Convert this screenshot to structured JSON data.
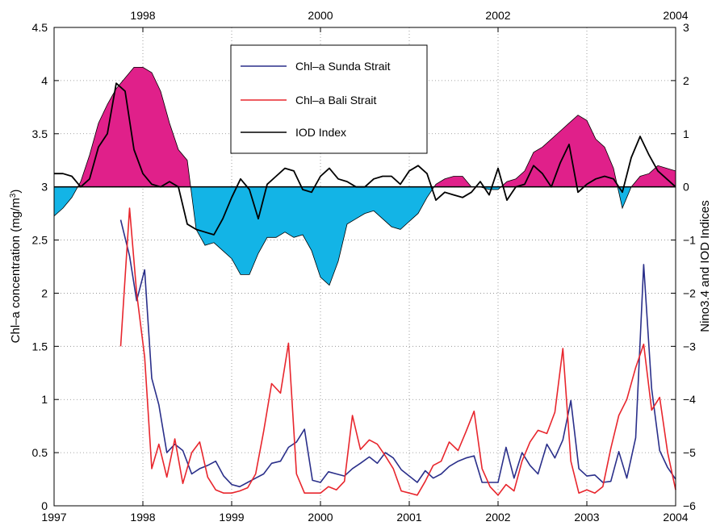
{
  "chart_data": {
    "type": "line",
    "bottom_axis": {
      "ticks": [
        "1997",
        "1998",
        "1999",
        "2000",
        "2001",
        "2002",
        "2003",
        "2004"
      ],
      "range": [
        1997,
        2004
      ]
    },
    "top_axis": {
      "ticks": [
        "1998",
        "2000",
        "2002",
        "2004"
      ],
      "values": [
        1998,
        2000,
        2002,
        2004
      ]
    },
    "left_axis": {
      "label_prefix": "Chl–a concentration (mg/m",
      "label_sup": "3",
      "label_suffix": ")",
      "ticks": [
        "0",
        "0.5",
        "1",
        "1.5",
        "2",
        "2.5",
        "3",
        "3.5",
        "4",
        "4.5"
      ],
      "range": [
        0,
        4.5
      ]
    },
    "right_axis": {
      "label": "Nino3.4 and IOD Indices",
      "ticks": [
        "−6",
        "−5",
        "−4",
        "−3",
        "−2",
        "−1",
        "0",
        "1",
        "2",
        "3"
      ],
      "range": [
        -6,
        3
      ]
    },
    "grid": true,
    "legend": {
      "placement": "top-center",
      "entries": [
        {
          "label": "Chl–a Sunda Strait",
          "color": "#2a2f8a"
        },
        {
          "label": "Chl–a Bali Strait",
          "color": "#e8262d"
        },
        {
          "label": "IOD Index",
          "color": "#000000"
        }
      ]
    },
    "nino_fill": {
      "positive_color": "#e0208a",
      "negative_color": "#13b4e6",
      "x": [
        1997.0,
        1997.1,
        1997.2,
        1997.3,
        1997.4,
        1997.5,
        1997.6,
        1997.7,
        1997.8,
        1997.9,
        1998.0,
        1998.1,
        1998.2,
        1998.3,
        1998.4,
        1998.5,
        1998.6,
        1998.7,
        1998.8,
        1998.9,
        1999.0,
        1999.1,
        1999.2,
        1999.3,
        1999.4,
        1999.5,
        1999.6,
        1999.7,
        1999.8,
        1999.9,
        2000.0,
        2000.1,
        2000.2,
        2000.3,
        2000.4,
        2000.5,
        2000.6,
        2000.7,
        2000.8,
        2000.9,
        2001.0,
        2001.1,
        2001.2,
        2001.3,
        2001.4,
        2001.5,
        2001.6,
        2001.7,
        2001.8,
        2001.9,
        2002.0,
        2002.1,
        2002.2,
        2002.3,
        2002.4,
        2002.5,
        2002.6,
        2002.7,
        2002.8,
        2002.9,
        2003.0,
        2003.1,
        2003.2,
        2003.3,
        2003.4,
        2003.5,
        2003.6,
        2003.7,
        2003.8,
        2003.9,
        2004.0
      ],
      "y": [
        -0.55,
        -0.4,
        -0.2,
        0.1,
        0.6,
        1.2,
        1.55,
        1.85,
        2.05,
        2.25,
        2.25,
        2.15,
        1.8,
        1.2,
        0.7,
        0.5,
        -0.8,
        -1.1,
        -1.05,
        -1.2,
        -1.35,
        -1.65,
        -1.65,
        -1.25,
        -0.95,
        -0.95,
        -0.85,
        -0.95,
        -0.9,
        -1.2,
        -1.7,
        -1.85,
        -1.4,
        -0.7,
        -0.6,
        -0.5,
        -0.45,
        -0.6,
        -0.75,
        -0.8,
        -0.65,
        -0.5,
        -0.2,
        0.05,
        0.15,
        0.2,
        0.2,
        0.0,
        0.0,
        -0.05,
        -0.05,
        0.1,
        0.15,
        0.3,
        0.65,
        0.75,
        0.9,
        1.05,
        1.2,
        1.35,
        1.25,
        0.9,
        0.75,
        0.35,
        -0.4,
        0.0,
        0.2,
        0.25,
        0.4,
        0.35,
        0.3
      ]
    },
    "series": [
      {
        "name": "IOD Index",
        "axis": "right",
        "color": "#000000",
        "x": [
          1997.0,
          1997.1,
          1997.2,
          1997.3,
          1997.4,
          1997.5,
          1997.6,
          1997.7,
          1997.8,
          1997.9,
          1998.0,
          1998.1,
          1998.2,
          1998.3,
          1998.4,
          1998.5,
          1998.6,
          1998.7,
          1998.8,
          1998.9,
          1999.0,
          1999.1,
          1999.2,
          1999.3,
          1999.4,
          1999.5,
          1999.6,
          1999.7,
          1999.8,
          1999.9,
          2000.0,
          2000.1,
          2000.2,
          2000.3,
          2000.4,
          2000.5,
          2000.6,
          2000.7,
          2000.8,
          2000.9,
          2001.0,
          2001.1,
          2001.2,
          2001.3,
          2001.4,
          2001.5,
          2001.6,
          2001.7,
          2001.8,
          2001.9,
          2002.0,
          2002.1,
          2002.2,
          2002.3,
          2002.4,
          2002.5,
          2002.6,
          2002.7,
          2002.8,
          2002.9,
          2003.0,
          2003.1,
          2003.2,
          2003.3,
          2003.4,
          2003.5,
          2003.6,
          2003.7,
          2003.8,
          2003.9,
          2004.0
        ],
        "y": [
          0.25,
          0.25,
          0.2,
          0.0,
          0.15,
          0.75,
          1.0,
          1.95,
          1.8,
          0.7,
          0.25,
          0.05,
          0.0,
          0.1,
          0.0,
          -0.7,
          -0.8,
          -0.85,
          -0.9,
          -0.6,
          -0.2,
          0.15,
          -0.05,
          -0.6,
          0.05,
          0.2,
          0.35,
          0.3,
          -0.05,
          -0.1,
          0.2,
          0.35,
          0.15,
          0.1,
          0.0,
          0.0,
          0.15,
          0.2,
          0.2,
          0.05,
          0.3,
          0.4,
          0.25,
          -0.25,
          -0.1,
          -0.15,
          -0.2,
          -0.1,
          0.1,
          -0.15,
          0.35,
          -0.25,
          0.0,
          0.05,
          0.4,
          0.25,
          0.0,
          0.45,
          0.8,
          -0.1,
          0.05,
          0.15,
          0.2,
          0.15,
          -0.1,
          0.55,
          0.95,
          0.6,
          0.3,
          0.15,
          0.0
        ]
      },
      {
        "name": "Chl–a Sunda Strait",
        "axis": "left",
        "color": "#2a2f8a",
        "x": [
          1997.75,
          1997.85,
          1997.93,
          1998.02,
          1998.1,
          1998.18,
          1998.27,
          1998.36,
          1998.45,
          1998.55,
          1998.64,
          1998.73,
          1998.82,
          1998.91,
          1999.0,
          1999.09,
          1999.18,
          1999.27,
          1999.36,
          1999.45,
          1999.55,
          1999.64,
          1999.73,
          1999.82,
          1999.91,
          2000.0,
          2000.09,
          2000.18,
          2000.27,
          2000.36,
          2000.45,
          2000.55,
          2000.64,
          2000.73,
          2000.82,
          2000.91,
          2001.0,
          2001.09,
          2001.18,
          2001.27,
          2001.36,
          2001.45,
          2001.55,
          2001.64,
          2001.73,
          2001.82,
          2001.91,
          2002.0,
          2002.09,
          2002.18,
          2002.27,
          2002.36,
          2002.45,
          2002.55,
          2002.64,
          2002.73,
          2002.82,
          2002.91,
          2003.0,
          2003.09,
          2003.18,
          2003.27,
          2003.36,
          2003.45,
          2003.55,
          2003.64,
          2003.73,
          2003.82,
          2003.91,
          2004.0
        ],
        "y": [
          2.69,
          2.35,
          1.93,
          2.22,
          1.2,
          0.95,
          0.5,
          0.58,
          0.52,
          0.3,
          0.35,
          0.38,
          0.42,
          0.28,
          0.2,
          0.18,
          0.22,
          0.26,
          0.3,
          0.4,
          0.42,
          0.55,
          0.6,
          0.72,
          0.24,
          0.22,
          0.32,
          0.3,
          0.28,
          0.35,
          0.4,
          0.46,
          0.4,
          0.5,
          0.45,
          0.34,
          0.28,
          0.22,
          0.33,
          0.26,
          0.3,
          0.37,
          0.42,
          0.45,
          0.47,
          0.22,
          0.22,
          0.22,
          0.55,
          0.26,
          0.5,
          0.38,
          0.3,
          0.58,
          0.45,
          0.62,
          0.99,
          0.35,
          0.28,
          0.29,
          0.22,
          0.23,
          0.51,
          0.26,
          0.64,
          2.27,
          1.1,
          0.52,
          0.36,
          0.25
        ]
      },
      {
        "name": "Chl–a Bali Strait",
        "axis": "left",
        "color": "#e8262d",
        "x": [
          1997.75,
          1997.85,
          1997.93,
          1998.02,
          1998.1,
          1998.18,
          1998.27,
          1998.36,
          1998.45,
          1998.55,
          1998.64,
          1998.73,
          1998.82,
          1998.91,
          1999.0,
          1999.09,
          1999.18,
          1999.27,
          1999.36,
          1999.45,
          1999.55,
          1999.64,
          1999.73,
          1999.82,
          1999.91,
          2000.0,
          2000.09,
          2000.18,
          2000.27,
          2000.36,
          2000.45,
          2000.55,
          2000.64,
          2000.73,
          2000.82,
          2000.91,
          2001.0,
          2001.09,
          2001.18,
          2001.27,
          2001.36,
          2001.45,
          2001.55,
          2001.64,
          2001.73,
          2001.82,
          2001.91,
          2002.0,
          2002.09,
          2002.18,
          2002.27,
          2002.36,
          2002.45,
          2002.55,
          2002.64,
          2002.73,
          2002.82,
          2002.91,
          2003.0,
          2003.09,
          2003.18,
          2003.27,
          2003.36,
          2003.45,
          2003.55,
          2003.64,
          2003.73,
          2003.82,
          2003.91,
          2004.0
        ],
        "y": [
          1.5,
          2.8,
          2.0,
          1.4,
          0.35,
          0.58,
          0.27,
          0.63,
          0.21,
          0.5,
          0.6,
          0.27,
          0.15,
          0.12,
          0.12,
          0.14,
          0.17,
          0.3,
          0.7,
          1.15,
          1.06,
          1.53,
          0.3,
          0.12,
          0.12,
          0.12,
          0.18,
          0.15,
          0.23,
          0.85,
          0.53,
          0.62,
          0.58,
          0.47,
          0.35,
          0.14,
          0.12,
          0.1,
          0.23,
          0.38,
          0.42,
          0.6,
          0.52,
          0.7,
          0.89,
          0.35,
          0.18,
          0.1,
          0.2,
          0.14,
          0.42,
          0.6,
          0.71,
          0.68,
          0.88,
          1.48,
          0.42,
          0.12,
          0.15,
          0.12,
          0.18,
          0.54,
          0.85,
          1.0,
          1.3,
          1.52,
          0.9,
          1.02,
          0.5,
          0.15
        ]
      }
    ]
  }
}
